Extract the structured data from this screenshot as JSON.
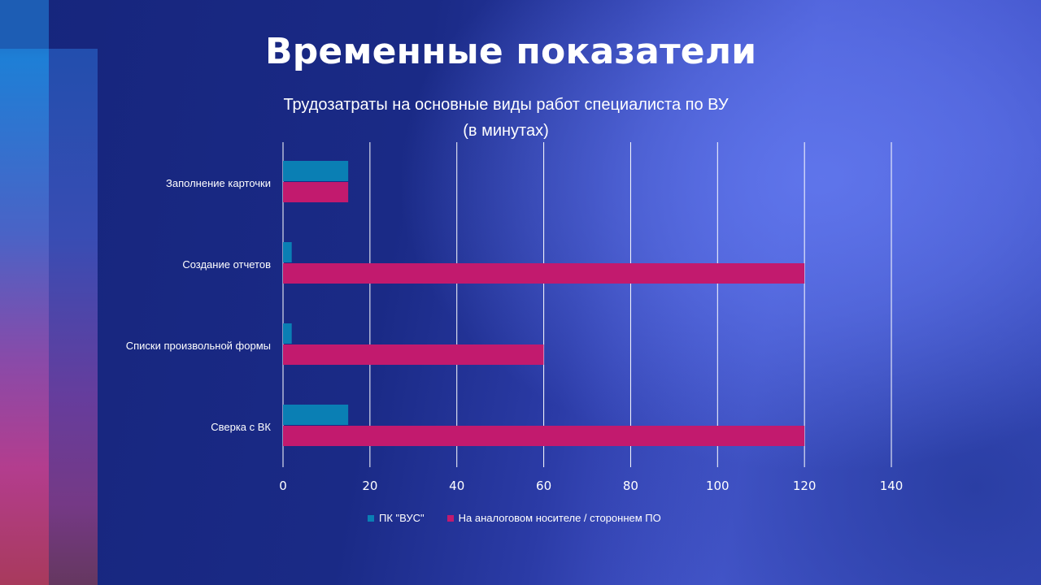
{
  "slide": {
    "title": "Временные показатели"
  },
  "colors": {
    "series_a": "#0a7fb4",
    "series_b": "#c21a6e",
    "grid": "#ffffff",
    "text": "#ffffff"
  },
  "chart_data": {
    "type": "bar",
    "orientation": "horizontal",
    "title": [
      "Трудозатраты на основные виды работ специалиста по ВУ",
      "(в минутах)"
    ],
    "categories": [
      "Заполнение карточки",
      "Создание отчетов",
      "Списки произвольной формы",
      "Сверка с ВК"
    ],
    "series": [
      {
        "name": "ПК \"ВУС\"",
        "values": [
          15,
          2,
          2,
          15
        ]
      },
      {
        "name": "На аналоговом носителе / стороннем ПО",
        "values": [
          15,
          120,
          60,
          120
        ]
      }
    ],
    "xlim": [
      0,
      140
    ],
    "xticks": [
      "0",
      "20",
      "40",
      "60",
      "80",
      "100",
      "120",
      "140"
    ],
    "grid": "vertical",
    "legend": "bottom"
  }
}
